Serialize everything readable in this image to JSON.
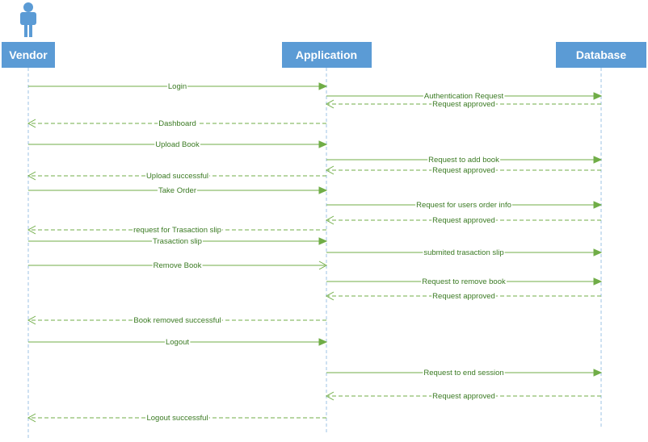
{
  "participants": [
    {
      "id": "vendor",
      "name": "Vendor"
    },
    {
      "id": "app",
      "name": "Application"
    },
    {
      "id": "db",
      "name": "Database"
    }
  ],
  "messages": [
    {
      "from": "vendor",
      "to": "app",
      "label": "Login",
      "style": "sync"
    },
    {
      "from": "app",
      "to": "db",
      "label": "Authentication Request",
      "style": "sync"
    },
    {
      "from": "db",
      "to": "app",
      "label": "Request approved",
      "style": "return"
    },
    {
      "from": "app",
      "to": "vendor",
      "label": "Dashboard",
      "style": "return"
    },
    {
      "from": "vendor",
      "to": "app",
      "label": "Upload Book",
      "style": "sync"
    },
    {
      "from": "app",
      "to": "db",
      "label": "Request to add book",
      "style": "sync"
    },
    {
      "from": "db",
      "to": "app",
      "label": "Request approved",
      "style": "return"
    },
    {
      "from": "app",
      "to": "vendor",
      "label": "Upload successful",
      "style": "return"
    },
    {
      "from": "vendor",
      "to": "app",
      "label": "Take Order",
      "style": "sync"
    },
    {
      "from": "app",
      "to": "db",
      "label": "Request for users order info",
      "style": "sync"
    },
    {
      "from": "db",
      "to": "app",
      "label": "Request approved",
      "style": "return"
    },
    {
      "from": "app",
      "to": "vendor",
      "label": "request for Trasaction slip",
      "style": "return"
    },
    {
      "from": "vendor",
      "to": "app",
      "label": "Trasaction slip",
      "style": "sync"
    },
    {
      "from": "app",
      "to": "db",
      "label": "submited trasaction slip",
      "style": "sync"
    },
    {
      "from": "vendor",
      "to": "app",
      "label": "Remove Book",
      "style": "async"
    },
    {
      "from": "app",
      "to": "db",
      "label": "Request to remove book",
      "style": "sync"
    },
    {
      "from": "db",
      "to": "app",
      "label": "Request approved",
      "style": "return"
    },
    {
      "from": "app",
      "to": "vendor",
      "label": "Book removed successful",
      "style": "return"
    },
    {
      "from": "vendor",
      "to": "app",
      "label": "Logout",
      "style": "sync"
    },
    {
      "from": "app",
      "to": "db",
      "label": "Request to end session",
      "style": "sync"
    },
    {
      "from": "db",
      "to": "app",
      "label": "Request approved",
      "style": "return"
    },
    {
      "from": "app",
      "to": "vendor",
      "label": "Logout successful",
      "style": "return"
    }
  ],
  "colors": {
    "participant_fill": "#5b9bd5",
    "lifeline": "#9dc3e6",
    "message": "#70ad47",
    "message_text": "#3a7a22"
  },
  "actor_icon": "person-icon"
}
